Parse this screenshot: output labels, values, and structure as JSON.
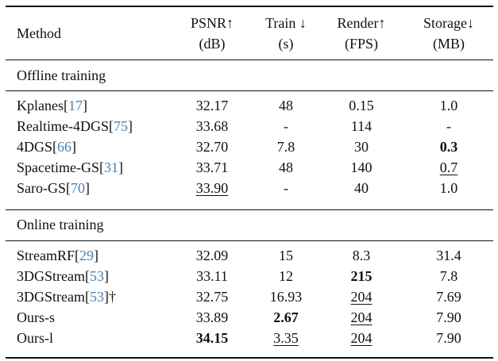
{
  "table": {
    "columns": [
      {
        "label": "Method"
      },
      {
        "line1": "PSNR↑",
        "line2": "(dB)"
      },
      {
        "line1": "Train ↓",
        "line2": "(s)"
      },
      {
        "line1": "Render↑",
        "line2": "(FPS)"
      },
      {
        "line1": "Storage↓",
        "line2": "(MB)"
      }
    ],
    "groups": [
      {
        "label": "Offline training",
        "rows": [
          {
            "name": "Kplanes",
            "cite": "[17]",
            "dagger": "",
            "psnr": "32.17",
            "train": "48",
            "render": "0.15",
            "storage": "1.0",
            "style": {}
          },
          {
            "name": "Realtime-4DGS",
            "cite": "[75]",
            "dagger": "",
            "psnr": "33.68",
            "train": "-",
            "render": "114",
            "storage": "-",
            "style": {}
          },
          {
            "name": "4DGS",
            "cite": "[66]",
            "dagger": "",
            "psnr": "32.70",
            "train": "7.8",
            "render": "30",
            "storage": "0.3",
            "style": {
              "storage": "bold"
            }
          },
          {
            "name": "Spacetime-GS",
            "cite": "[31]",
            "dagger": "",
            "psnr": "33.71",
            "train": "48",
            "render": "140",
            "storage": "0.7",
            "style": {
              "storage": "underline"
            }
          },
          {
            "name": "Saro-GS",
            "cite": "[70]",
            "dagger": "",
            "psnr": "33.90",
            "train": "-",
            "render": "40",
            "storage": "1.0",
            "style": {
              "psnr": "underline"
            }
          }
        ]
      },
      {
        "label": "Online training",
        "rows": [
          {
            "name": "StreamRF",
            "cite": "[29]",
            "dagger": "",
            "psnr": "32.09",
            "train": "15",
            "render": "8.3",
            "storage": "31.4",
            "style": {}
          },
          {
            "name": "3DGStream",
            "cite": "[53]",
            "dagger": "",
            "psnr": "33.11",
            "train": "12",
            "render": "215",
            "storage": "7.8",
            "style": {
              "render": "bold"
            }
          },
          {
            "name": "3DGStream",
            "cite": "[53]",
            "dagger": "†",
            "psnr": "32.75",
            "train": "16.93",
            "render": "204",
            "storage": "7.69",
            "style": {
              "render": "underline"
            }
          },
          {
            "name": "Ours-s",
            "cite": "",
            "dagger": "",
            "psnr": "33.89",
            "train": "2.67",
            "render": "204",
            "storage": "7.90",
            "style": {
              "train": "bold",
              "render": "underline"
            }
          },
          {
            "name": "Ours-l",
            "cite": "",
            "dagger": "",
            "psnr": "34.15",
            "train": "3.35",
            "render": "204",
            "storage": "7.90",
            "style": {
              "psnr": "bold",
              "train": "underline",
              "render": "underline"
            }
          }
        ]
      }
    ]
  }
}
